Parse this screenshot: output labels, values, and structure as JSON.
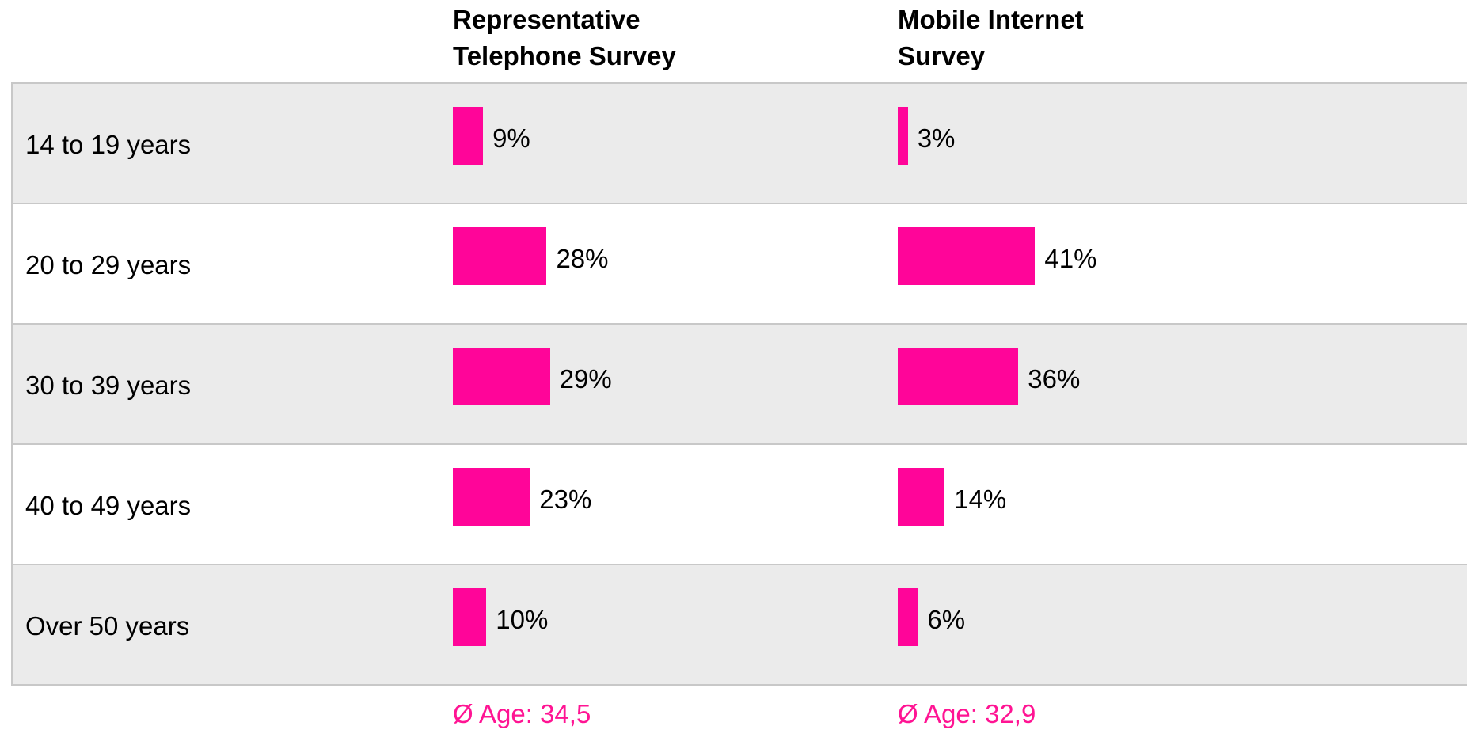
{
  "chart_data": {
    "type": "bar",
    "categories": [
      "14 to 19 years",
      "20 to 29 years",
      "30 to 39 years",
      "40 to 49 years",
      "Over 50 years"
    ],
    "series": [
      {
        "name": "Representative Telephone Survey",
        "color": "#ff0599",
        "values": [
          9,
          28,
          29,
          23,
          10
        ],
        "value_labels": [
          "9%",
          "28%",
          "29%",
          "23%",
          "10%"
        ],
        "footer": "Ø Age:  34,5"
      },
      {
        "name": "Mobile Internet Survey",
        "color": "#ff0599",
        "values": [
          3,
          41,
          36,
          14,
          6
        ],
        "value_labels": [
          "3%",
          "41%",
          "36%",
          "14%",
          "6%"
        ],
        "footer": "Ø Age:  32,9"
      }
    ]
  }
}
